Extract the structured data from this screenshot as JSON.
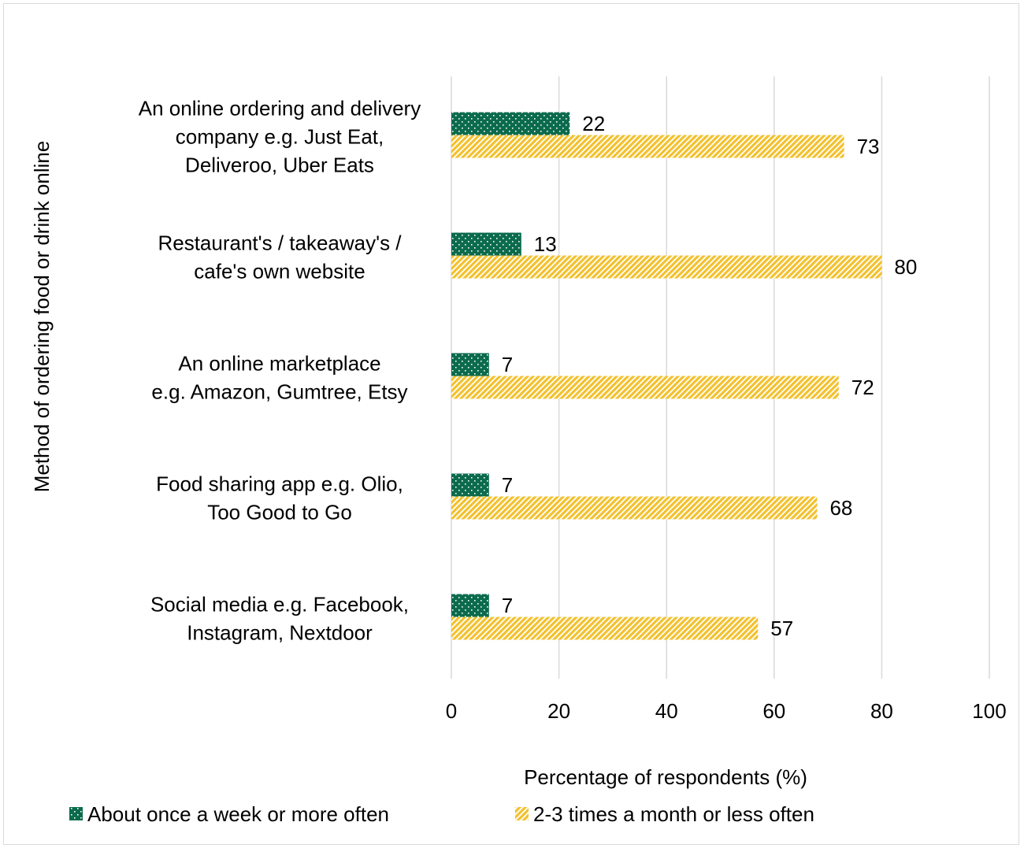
{
  "chart_data": {
    "type": "bar",
    "orientation": "horizontal",
    "categories": [
      [
        "An online ordering and delivery",
        "company e.g. Just Eat,",
        "Deliveroo, Uber Eats"
      ],
      [
        "Restaurant's / takeaway's /",
        "cafe's own website"
      ],
      [
        "An online marketplace",
        "e.g. Amazon, Gumtree, Etsy"
      ],
      [
        "Food sharing app e.g. Olio,",
        "Too Good to Go"
      ],
      [
        "Social media e.g. Facebook,",
        "Instagram, Nextdoor"
      ]
    ],
    "series": [
      {
        "name": "About once a week or more often",
        "values": [
          22,
          13,
          7,
          7,
          7
        ],
        "color": "#0b6b4c",
        "pattern": "dots"
      },
      {
        "name": "2-3 times a month or less often",
        "values": [
          73,
          80,
          72,
          68,
          57
        ],
        "color": "#f2c12e",
        "pattern": "diagonal-stripes"
      }
    ],
    "xlabel": "Percentage of respondents (%)",
    "ylabel": "Method of ordering food or drink online",
    "xlim": [
      0,
      100
    ],
    "xticks": [
      0,
      20,
      40,
      60,
      80,
      100
    ],
    "grid": true,
    "data_labels": true,
    "legend_position": "bottom"
  }
}
